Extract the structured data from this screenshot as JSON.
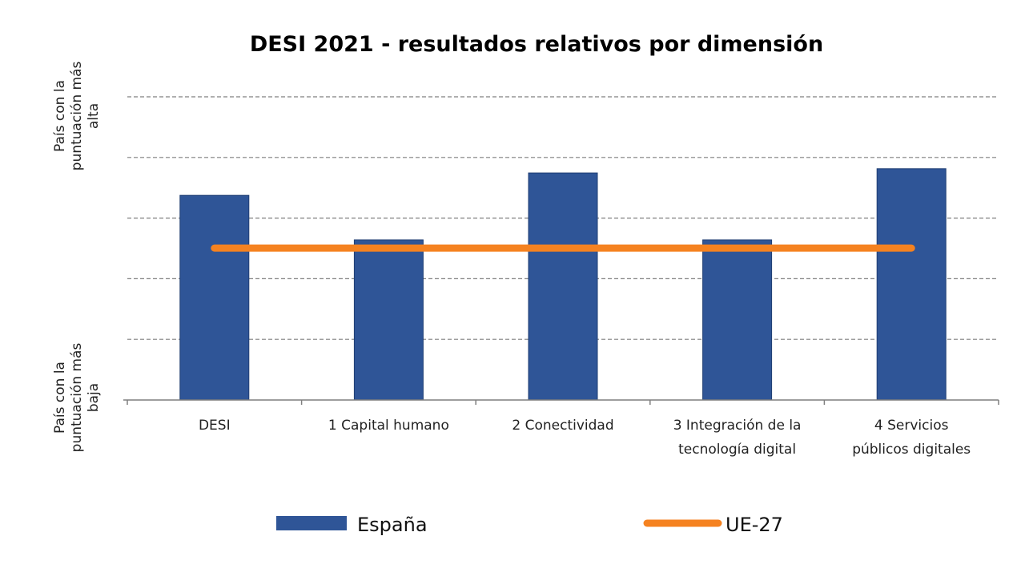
{
  "chart_data": {
    "type": "bar",
    "title": "DESI 2021 - resultados relativos por dimensión",
    "xlabel": "",
    "ylabel": "",
    "y_axis_labels": {
      "top": [
        "País con la",
        "puntuación más",
        "alta"
      ],
      "bottom": [
        "País con la",
        "puntuación más",
        "baja"
      ]
    },
    "ylim": [
      0,
      1
    ],
    "grid": true,
    "grid_step": 0.2,
    "categories": [
      [
        "DESI"
      ],
      [
        "1 Capital humano"
      ],
      [
        "2 Conectividad"
      ],
      [
        "3 Integración de la",
        "tecnología digital"
      ],
      [
        "4 Servicios",
        "públicos digitales"
      ]
    ],
    "series": [
      {
        "name": "España",
        "type": "bar",
        "color": "#2F5597",
        "values": [
          0.675,
          0.528,
          0.749,
          0.528,
          0.763
        ]
      },
      {
        "name": "UE-27",
        "type": "line",
        "color": "#F58220",
        "values": [
          0.501,
          0.501,
          0.501,
          0.501,
          0.501
        ]
      }
    ],
    "legend": {
      "placement": "bottom",
      "entries": [
        "España",
        "UE-27"
      ]
    }
  }
}
